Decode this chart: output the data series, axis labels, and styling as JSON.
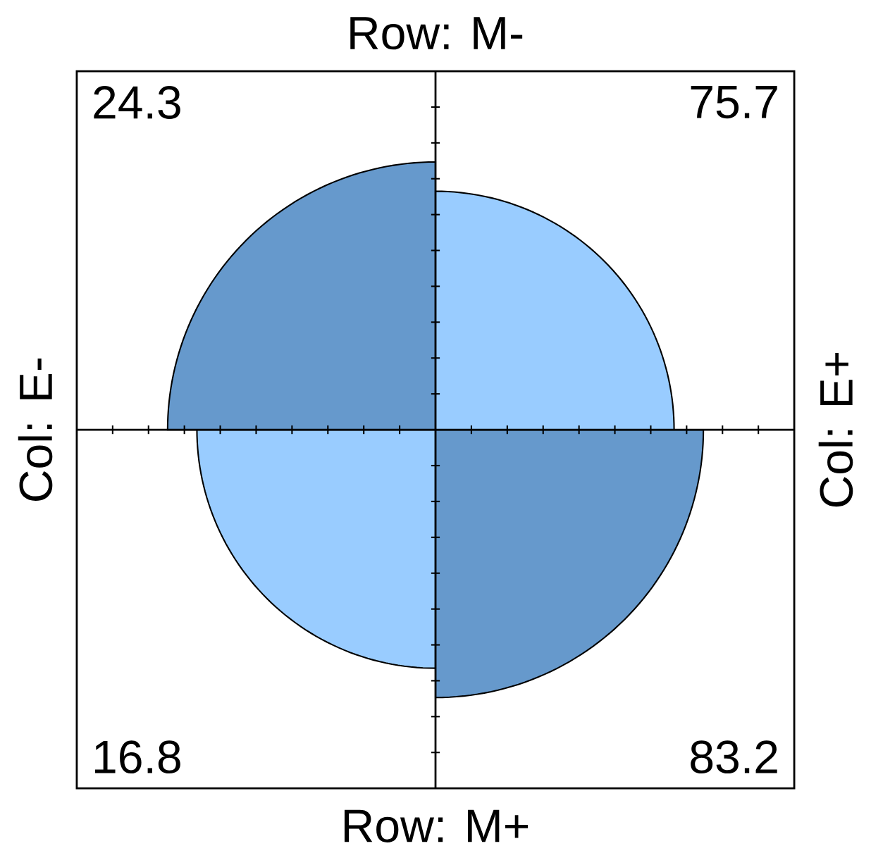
{
  "chart_data": {
    "type": "other",
    "categories": [
      null,
      null,
      null,
      null
    ],
    "values": [
      24.3,
      75.7,
      16.8,
      83.2
    ],
    "colors": [
      "#6699cc",
      "#99ccff",
      "#99ccff",
      "#6699cc"
    ],
    "data_labels": true,
    "xlabel": "Row: M+",
    "x2label": "Row: M-",
    "ylabel": "Col: E-",
    "y2label": "Col: E+"
  }
}
